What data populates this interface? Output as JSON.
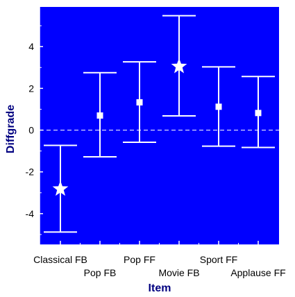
{
  "chart_data": {
    "type": "errorbar",
    "xlabel": "Item",
    "ylabel": "Diffgrade",
    "ylim": [
      -5.5,
      5.9
    ],
    "yticks": [
      -4,
      -2,
      0,
      2,
      4
    ],
    "yticklabels": [
      "-4",
      "-2",
      "0",
      "2",
      "4"
    ],
    "reference_line": {
      "y": 0,
      "style": "dashed"
    },
    "grid": false,
    "legend": "none",
    "colors": {
      "plot_background": "#0000ff",
      "marks": "#ffffff",
      "axis_title": "#000080",
      "tick_text": "#000000"
    },
    "categories": [
      "Classical FB",
      "Pop FB",
      "Pop FF",
      "Movie FB",
      "Sport FF",
      "Applause FF"
    ],
    "points": [
      {
        "x": "Classical FB",
        "y": -2.82,
        "lower": -4.88,
        "upper": -0.73,
        "marker": "star"
      },
      {
        "x": "Pop FB",
        "y": 0.7,
        "lower": -1.28,
        "upper": 2.75,
        "marker": "square"
      },
      {
        "x": "Pop FF",
        "y": 1.33,
        "lower": -0.58,
        "upper": 3.27,
        "marker": "square"
      },
      {
        "x": "Movie FB",
        "y": 3.05,
        "lower": 0.68,
        "upper": 5.48,
        "marker": "star"
      },
      {
        "x": "Sport FF",
        "y": 1.12,
        "lower": -0.77,
        "upper": 3.03,
        "marker": "square"
      },
      {
        "x": "Applause FF",
        "y": 0.82,
        "lower": -0.83,
        "upper": 2.57,
        "marker": "square"
      }
    ]
  }
}
